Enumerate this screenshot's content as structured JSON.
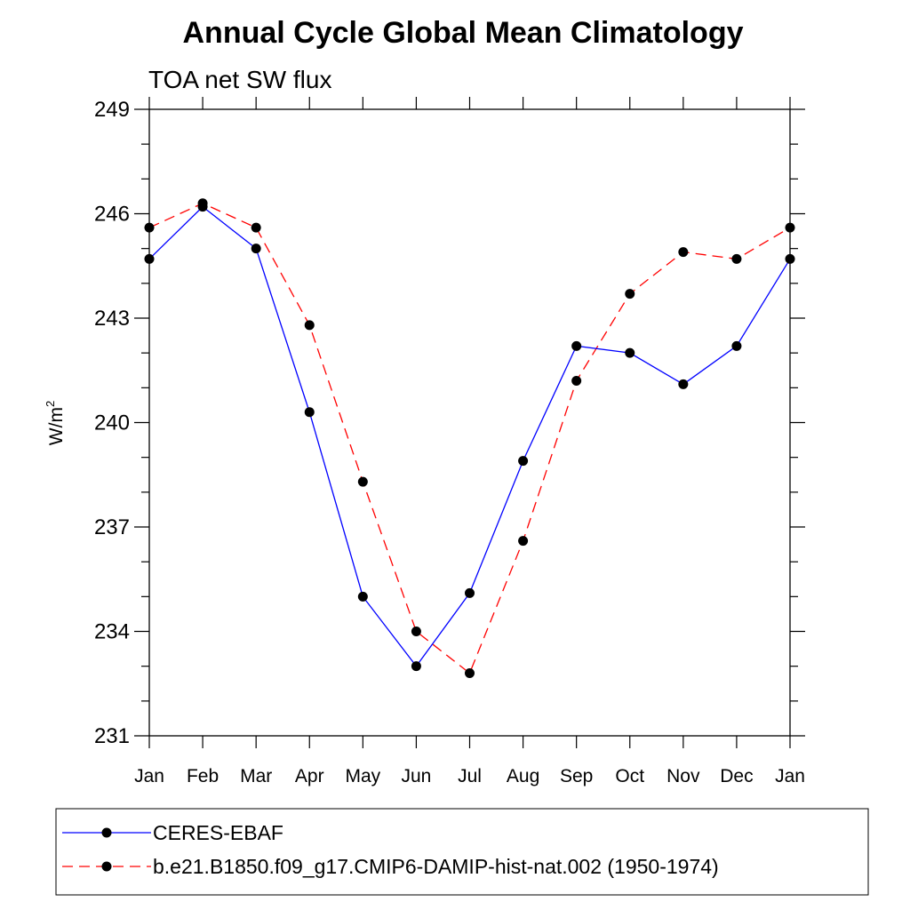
{
  "chart_data": {
    "type": "line",
    "title": "Annual Cycle Global Mean Climatology",
    "subtitle": "TOA net SW flux",
    "ylabel": "W/m",
    "ylabel_sup": "2",
    "xlabel": "",
    "categories": [
      "Jan",
      "Feb",
      "Mar",
      "Apr",
      "May",
      "Jun",
      "Jul",
      "Aug",
      "Sep",
      "Oct",
      "Nov",
      "Dec",
      "Jan"
    ],
    "ylim": [
      231,
      249
    ],
    "yticks": [
      "231",
      "234",
      "237",
      "240",
      "243",
      "246",
      "249"
    ],
    "yminor_step": 1,
    "grid": false,
    "legend_placement": "bottom",
    "series": [
      {
        "name": "CERES-EBAF",
        "color": "#0000ff",
        "dash": "solid",
        "marker": "filled-circle",
        "values": [
          244.7,
          246.2,
          245.0,
          240.3,
          235.0,
          233.0,
          235.1,
          238.9,
          242.2,
          242.0,
          241.1,
          242.2,
          244.7
        ]
      },
      {
        "name": "b.e21.B1850.f09_g17.CMIP6-DAMIP-hist-nat.002 (1950-1974)",
        "color": "#ff0000",
        "dash": "dashed",
        "marker": "filled-circle",
        "values": [
          245.6,
          246.3,
          245.6,
          242.8,
          238.3,
          234.0,
          232.8,
          236.6,
          241.2,
          243.7,
          244.9,
          244.7,
          245.6
        ]
      }
    ]
  }
}
